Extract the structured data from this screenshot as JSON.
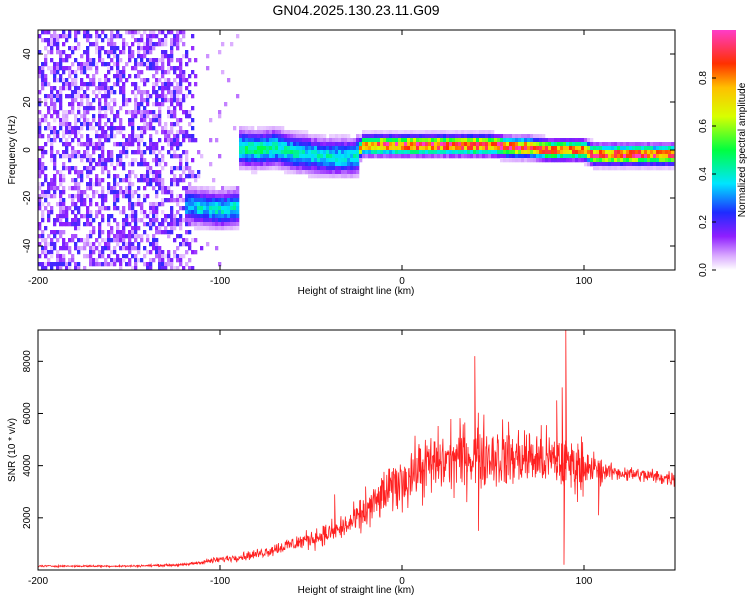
{
  "chart_data": [
    {
      "type": "heatmap",
      "title": "GN04.2025.130.23.11.G09",
      "xlabel": "Height of straight line (km)",
      "ylabel": "Frequency (Hz)",
      "xlim": [
        -200,
        150
      ],
      "ylim": [
        -50,
        50
      ],
      "xticks": [
        -200,
        -100,
        0,
        100
      ],
      "yticks": [
        -40,
        -20,
        0,
        20,
        40
      ],
      "grid": false,
      "colorbar": {
        "label": "Normalized spectral amplitude",
        "range": [
          0,
          1
        ],
        "ticks": [
          0.0,
          0.2,
          0.4,
          0.6,
          0.8
        ],
        "colormap": "rainbow (white-violet-blue-cyan-green-yellow-red-magenta)"
      },
      "ridge": [
        {
          "x": -120,
          "y": -23,
          "amp": 0.35
        },
        {
          "x": -110,
          "y": -24,
          "amp": 0.38
        },
        {
          "x": -100,
          "y": -25,
          "amp": 0.4
        },
        {
          "x": -92,
          "y": -24,
          "amp": 0.4
        },
        {
          "x": -90,
          "y": 1,
          "amp": 0.45
        },
        {
          "x": -80,
          "y": 0,
          "amp": 0.45
        },
        {
          "x": -70,
          "y": 1,
          "amp": 0.45
        },
        {
          "x": -60,
          "y": -1,
          "amp": 0.42
        },
        {
          "x": -50,
          "y": -2,
          "amp": 0.4
        },
        {
          "x": -40,
          "y": -3,
          "amp": 0.4
        },
        {
          "x": -30,
          "y": -3,
          "amp": 0.4
        },
        {
          "x": -25,
          "y": -3,
          "amp": 0.4
        },
        {
          "x": -22,
          "y": 2,
          "amp": 0.85
        },
        {
          "x": -10,
          "y": 2,
          "amp": 0.9
        },
        {
          "x": 0,
          "y": 2,
          "amp": 0.9
        },
        {
          "x": 10,
          "y": 2,
          "amp": 0.95
        },
        {
          "x": 20,
          "y": 2,
          "amp": 0.95
        },
        {
          "x": 30,
          "y": 2,
          "amp": 0.95
        },
        {
          "x": 40,
          "y": 2,
          "amp": 0.95
        },
        {
          "x": 50,
          "y": 2,
          "amp": 0.95
        },
        {
          "x": 60,
          "y": 1,
          "amp": 0.95
        },
        {
          "x": 70,
          "y": 1,
          "amp": 0.9
        },
        {
          "x": 80,
          "y": 0,
          "amp": 0.9
        },
        {
          "x": 90,
          "y": 0,
          "amp": 0.9
        },
        {
          "x": 100,
          "y": 0,
          "amp": 0.85
        },
        {
          "x": 105,
          "y": -2,
          "amp": 0.9
        },
        {
          "x": 120,
          "y": -2,
          "amp": 0.95
        },
        {
          "x": 135,
          "y": -2,
          "amp": 0.9
        },
        {
          "x": 150,
          "y": -2,
          "amp": 0.9
        }
      ],
      "noise_region": {
        "xmin": -200,
        "xmax": -110,
        "amp": 0.15
      }
    },
    {
      "type": "line",
      "title": "",
      "xlabel": "Height of straight line (km)",
      "ylabel": "SNR (10 * v/v)",
      "xlim": [
        -200,
        150
      ],
      "ylim": [
        0,
        9200
      ],
      "xticks": [
        -200,
        -100,
        0,
        100
      ],
      "yticks": [
        2000,
        4000,
        6000,
        8000
      ],
      "grid": false,
      "color": "#ff2020",
      "envelope": [
        {
          "x": -200,
          "y": 150
        },
        {
          "x": -150,
          "y": 150
        },
        {
          "x": -120,
          "y": 200
        },
        {
          "x": -100,
          "y": 400
        },
        {
          "x": -80,
          "y": 600
        },
        {
          "x": -60,
          "y": 1000
        },
        {
          "x": -40,
          "y": 1400
        },
        {
          "x": -30,
          "y": 1700
        },
        {
          "x": -20,
          "y": 2200
        },
        {
          "x": -10,
          "y": 2900
        },
        {
          "x": 0,
          "y": 3400
        },
        {
          "x": 10,
          "y": 3900
        },
        {
          "x": 20,
          "y": 4100
        },
        {
          "x": 30,
          "y": 4300
        },
        {
          "x": 40,
          "y": 4400
        },
        {
          "x": 50,
          "y": 4400
        },
        {
          "x": 60,
          "y": 4300
        },
        {
          "x": 70,
          "y": 4300
        },
        {
          "x": 80,
          "y": 4200
        },
        {
          "x": 90,
          "y": 4100
        },
        {
          "x": 100,
          "y": 3900
        },
        {
          "x": 110,
          "y": 3800
        },
        {
          "x": 130,
          "y": 3650
        },
        {
          "x": 150,
          "y": 3500
        }
      ],
      "spikes": [
        {
          "x": -37,
          "y": 2900
        },
        {
          "x": -20,
          "y": 3200
        },
        {
          "x": 40,
          "y": 8200
        },
        {
          "x": 42,
          "y": 1500
        },
        {
          "x": 85,
          "y": 6500
        },
        {
          "x": 88,
          "y": 7000
        },
        {
          "x": 90,
          "y": 9200
        },
        {
          "x": 89,
          "y": 200
        },
        {
          "x": 108,
          "y": 2100
        }
      ]
    }
  ]
}
